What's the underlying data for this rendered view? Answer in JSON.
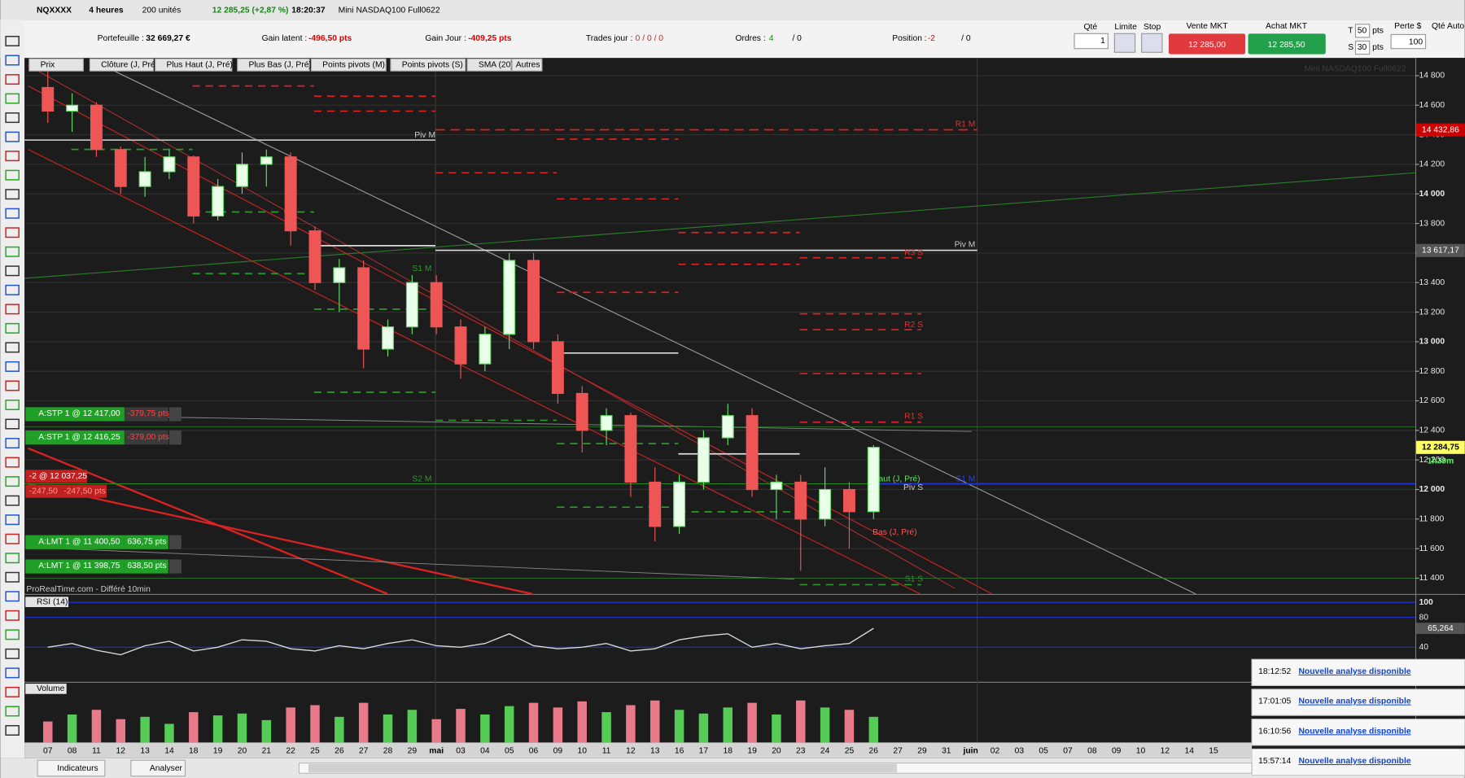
{
  "window": {
    "symbol": "NQXXXX",
    "timeframe": "4 heures",
    "units": "200 unités",
    "quote": "12 285,25 (+2,87 %)",
    "time": "18:20:37",
    "instrument": "Mini NASDAQ100 Full0622"
  },
  "account": {
    "portfolio_label": "Portefeuille :",
    "portfolio": "32 669,27 €",
    "latent_label": "Gain latent :",
    "latent": "-496,50 pts",
    "day_label": "Gain Jour :",
    "day": "-409,25 pts",
    "trades_label": "Trades jour :",
    "trades": "0 / 0 / 0",
    "orders_label": "Ordres :",
    "orders_open": "4",
    "orders_other": "/ 0",
    "position_label": "Position :",
    "position": "-2",
    "position_other": "/ 0"
  },
  "order_ticket": {
    "qty_label": "Qté",
    "qty": "1",
    "limit": "Limite",
    "stop": "Stop",
    "sell_label": "Vente MKT",
    "sell": "12 285,00",
    "buy_label": "Achat MKT",
    "buy": "12 285,50",
    "t_label": "T",
    "t_value": "50",
    "t_unit": "pts",
    "s_label": "S",
    "s_value": "30",
    "s_unit": "pts",
    "loss_label": "Perte $",
    "loss": "100",
    "auto_qty": "Qté Auto"
  },
  "indicator_tabs": [
    "Prix",
    "Clôture (J, Pré)",
    "Plus Haut (J, Pré)",
    "Plus Bas (J, Pré)",
    "Points pivots (M)",
    "Points pivots (S)",
    "SMA (20)",
    "Autres"
  ],
  "chart_data": [
    {
      "type": "candlestick",
      "title": "Mini NASDAQ100 Full0622",
      "categories": [
        "07",
        "08",
        "11",
        "12",
        "13",
        "14",
        "18",
        "19",
        "20",
        "21",
        "22",
        "25",
        "26",
        "27",
        "28",
        "29",
        "mai",
        "03",
        "04",
        "05",
        "06",
        "09",
        "10",
        "11",
        "12",
        "13",
        "16",
        "17",
        "18",
        "19",
        "20",
        "23",
        "24",
        "25",
        "26",
        "27",
        "29",
        "31",
        "juin",
        "02",
        "03",
        "05",
        "07",
        "08",
        "09",
        "10",
        "12",
        "14",
        "15"
      ],
      "open": [
        14720,
        14560,
        14600,
        14300,
        14050,
        14150,
        14250,
        13850,
        14050,
        14200,
        14250,
        13750,
        13400,
        13500,
        12950,
        13100,
        13400,
        13100,
        12850,
        13050,
        13550,
        13000,
        12650,
        12400,
        12500,
        12050,
        11750,
        12050,
        12350,
        12500,
        12000,
        12050,
        11800,
        12000,
        11850,
        null,
        null,
        null,
        null,
        null,
        null,
        null,
        null,
        null,
        null,
        null,
        null,
        null,
        null
      ],
      "high": [
        14870,
        14680,
        14620,
        14320,
        14250,
        14300,
        14260,
        14100,
        14280,
        14300,
        14280,
        13780,
        13560,
        13550,
        13150,
        13450,
        13450,
        13150,
        13100,
        13600,
        13600,
        13050,
        12700,
        12550,
        12520,
        12150,
        12100,
        12400,
        12580,
        12550,
        12100,
        12100,
        12150,
        12050,
        12300,
        null,
        null,
        null,
        null,
        null,
        null,
        null,
        null,
        null,
        null,
        null,
        null,
        null,
        null
      ],
      "low": [
        14480,
        14420,
        14250,
        14000,
        13980,
        14100,
        13800,
        13820,
        14000,
        14050,
        13650,
        13350,
        13200,
        12820,
        12900,
        13050,
        13050,
        12750,
        12800,
        12950,
        12950,
        12580,
        12250,
        12300,
        11950,
        11650,
        11700,
        12000,
        12300,
        11950,
        11800,
        11450,
        11750,
        11600,
        11800,
        null,
        null,
        null,
        null,
        null,
        null,
        null,
        null,
        null,
        null,
        null,
        null,
        null,
        null
      ],
      "close": [
        14560,
        14600,
        14300,
        14050,
        14150,
        14250,
        13850,
        14050,
        14200,
        14250,
        13750,
        13400,
        13500,
        12950,
        13100,
        13400,
        13100,
        12850,
        13050,
        13550,
        13000,
        12650,
        12400,
        12500,
        12050,
        11750,
        12050,
        12350,
        12500,
        12000,
        12050,
        11800,
        12000,
        11850,
        12285,
        null,
        null,
        null,
        null,
        null,
        null,
        null,
        null,
        null,
        null,
        null,
        null,
        null,
        null
      ],
      "up_color": "#66dd66",
      "down_color": "#ee5555",
      "ylim": [
        11293,
        14920
      ],
      "yticks": [
        {
          "value": 14800,
          "label": "14 800"
        },
        {
          "value": 14600,
          "label": "14 600"
        },
        {
          "value": 14400,
          "label": "14 400"
        },
        {
          "value": 14200,
          "label": "14 200"
        },
        {
          "value": 14000,
          "label": "14 000"
        },
        {
          "value": 13800,
          "label": "13 800"
        },
        {
          "value": 13600,
          "label": "13 600"
        },
        {
          "value": 13400,
          "label": "13 400"
        },
        {
          "value": 13200,
          "label": "13 200"
        },
        {
          "value": 13000,
          "label": "13 000"
        },
        {
          "value": 12800,
          "label": "12 800"
        },
        {
          "value": 12600,
          "label": "12 600"
        },
        {
          "value": 12400,
          "label": "12 400"
        },
        {
          "value": 12200,
          "label": "12 200"
        },
        {
          "value": 12000,
          "label": "12 000"
        },
        {
          "value": 11800,
          "label": "11 800"
        },
        {
          "value": 11600,
          "label": "11 600"
        },
        {
          "value": 11400,
          "label": "11 400"
        }
      ],
      "price_tags": [
        {
          "value": 14432.86,
          "label": "14 432,86",
          "color": "#cc0000"
        },
        {
          "value": 13617.17,
          "label": "13 617,17",
          "color": "#555555"
        },
        {
          "value": 12284.75,
          "label": "12 284,75",
          "color": "#ffff66"
        }
      ],
      "countdown": "1h39m",
      "grid": true
    },
    {
      "type": "line",
      "title": "RSI (14)",
      "values": [
        40,
        45,
        36,
        30,
        42,
        48,
        35,
        40,
        50,
        48,
        38,
        35,
        42,
        38,
        45,
        50,
        42,
        40,
        45,
        58,
        42,
        38,
        40,
        45,
        35,
        38,
        50,
        55,
        58,
        40,
        45,
        38,
        42,
        45,
        65.264
      ],
      "color": "#d8d8d8",
      "ylim": [
        0,
        105
      ],
      "yticks": [
        100,
        80,
        40
      ],
      "current": {
        "value": 65.264,
        "label": "65,264"
      }
    },
    {
      "type": "bar",
      "title": "Volume",
      "values": [
        45,
        60,
        70,
        50,
        55,
        40,
        65,
        58,
        62,
        48,
        75,
        80,
        55,
        85,
        60,
        70,
        50,
        72,
        60,
        78,
        85,
        75,
        88,
        65,
        80,
        90,
        70,
        62,
        75,
        85,
        60,
        90,
        75,
        70,
        55
      ],
      "ylim": [
        0,
        100
      ]
    }
  ],
  "level_labels": [
    "Piv M",
    "R1 M",
    "Piv M",
    "R3 S",
    "S1 M",
    "R2 S",
    "R1 S",
    "S2 M",
    "Haut (J, Pré)",
    "S1 M",
    "Piv S",
    "Bas (J, Pré)",
    "S1 S"
  ],
  "orders": [
    {
      "text": "A:STP 1 @ 12 417,00",
      "pnl": "-379,75 pts"
    },
    {
      "text": "A:STP 1 @ 12 416,25",
      "pnl": "-379,00 pts"
    },
    {
      "text": "A:LMT 1 @ 11 400,50",
      "pnl": "636,75 pts"
    },
    {
      "text": "A:LMT 1 @ 11 398,75",
      "pnl": "638,50 pts"
    }
  ],
  "position_tag": {
    "text": "-2 @ 12 037,25",
    "pnl_a": "-247,50",
    "pnl_b": "-247,50 pts"
  },
  "source": "ProRealTime.com - Différé 10min",
  "notifications": [
    {
      "time": "18:12:52",
      "text": "Nouvelle analyse disponible"
    },
    {
      "time": "17:01:05",
      "text": "Nouvelle analyse disponible"
    },
    {
      "time": "16:10:56",
      "text": "Nouvelle analyse disponible"
    },
    {
      "time": "15:57:14",
      "text": "Nouvelle analyse disponible"
    }
  ],
  "bottom_bar": {
    "indicators": "Indicateurs",
    "analyze": "Analyser"
  }
}
